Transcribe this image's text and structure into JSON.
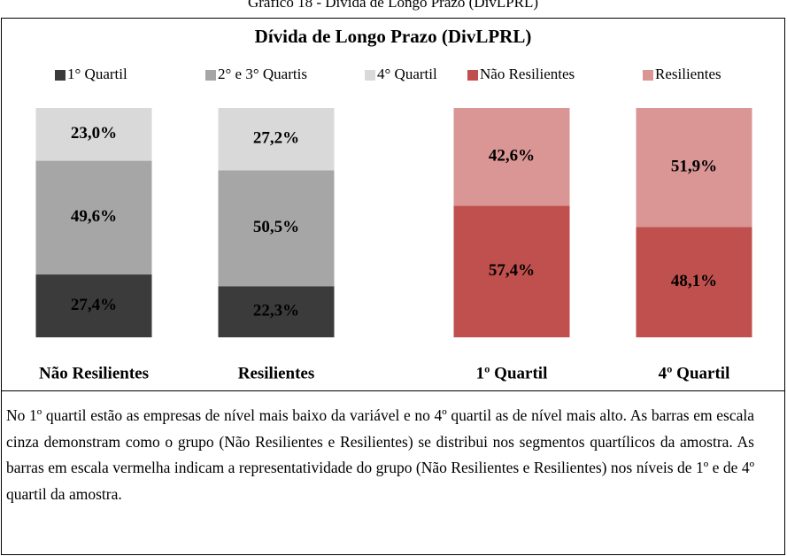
{
  "caption": "Gráfico 18 - Dívida de Longo Prazo (DivLPRL)",
  "chart_data": {
    "type": "bar",
    "stacked": true,
    "title": "Dívida de Longo Prazo (DivLPRL)",
    "categories": [
      "Não Resilientes",
      "Resilientes",
      "1º Quartil",
      "4º Quartil"
    ],
    "series": [
      {
        "name": "1° Quartil",
        "color": "#3b3b3b",
        "values": [
          27.4,
          22.3,
          null,
          null
        ],
        "value_labels": [
          "27,4%",
          "22,3%",
          null,
          null
        ]
      },
      {
        "name": "2° e 3° Quartis",
        "color": "#a6a6a6",
        "values": [
          49.6,
          50.5,
          null,
          null
        ],
        "value_labels": [
          "49,6%",
          "50,5%",
          null,
          null
        ]
      },
      {
        "name": "4° Quartil",
        "color": "#d9d9d9",
        "values": [
          23.0,
          27.2,
          null,
          null
        ],
        "value_labels": [
          "23,0%",
          "27,2%",
          null,
          null
        ]
      },
      {
        "name": "Não Resilientes",
        "color": "#c0504d",
        "values": [
          null,
          null,
          57.4,
          48.1
        ],
        "value_labels": [
          null,
          null,
          "57,4%",
          "48,1%"
        ]
      },
      {
        "name": "Resilientes",
        "color": "#d99694",
        "values": [
          null,
          null,
          42.6,
          51.9
        ],
        "value_labels": [
          null,
          null,
          "42,6%",
          "51,9%"
        ]
      }
    ],
    "legend": "top"
  },
  "note": "No 1º quartil estão as empresas de nível mais baixo da variável e no 4º quartil as de nível mais alto. As barras em escala cinza demonstram como o grupo (Não Resilientes e Resilientes) se distribui nos segmentos quartílicos da amostra. As barras em escala vermelha indicam a representatividade do grupo (Não Resilientes e Resilientes) nos níveis de 1º e de 4º quartil da amostra."
}
